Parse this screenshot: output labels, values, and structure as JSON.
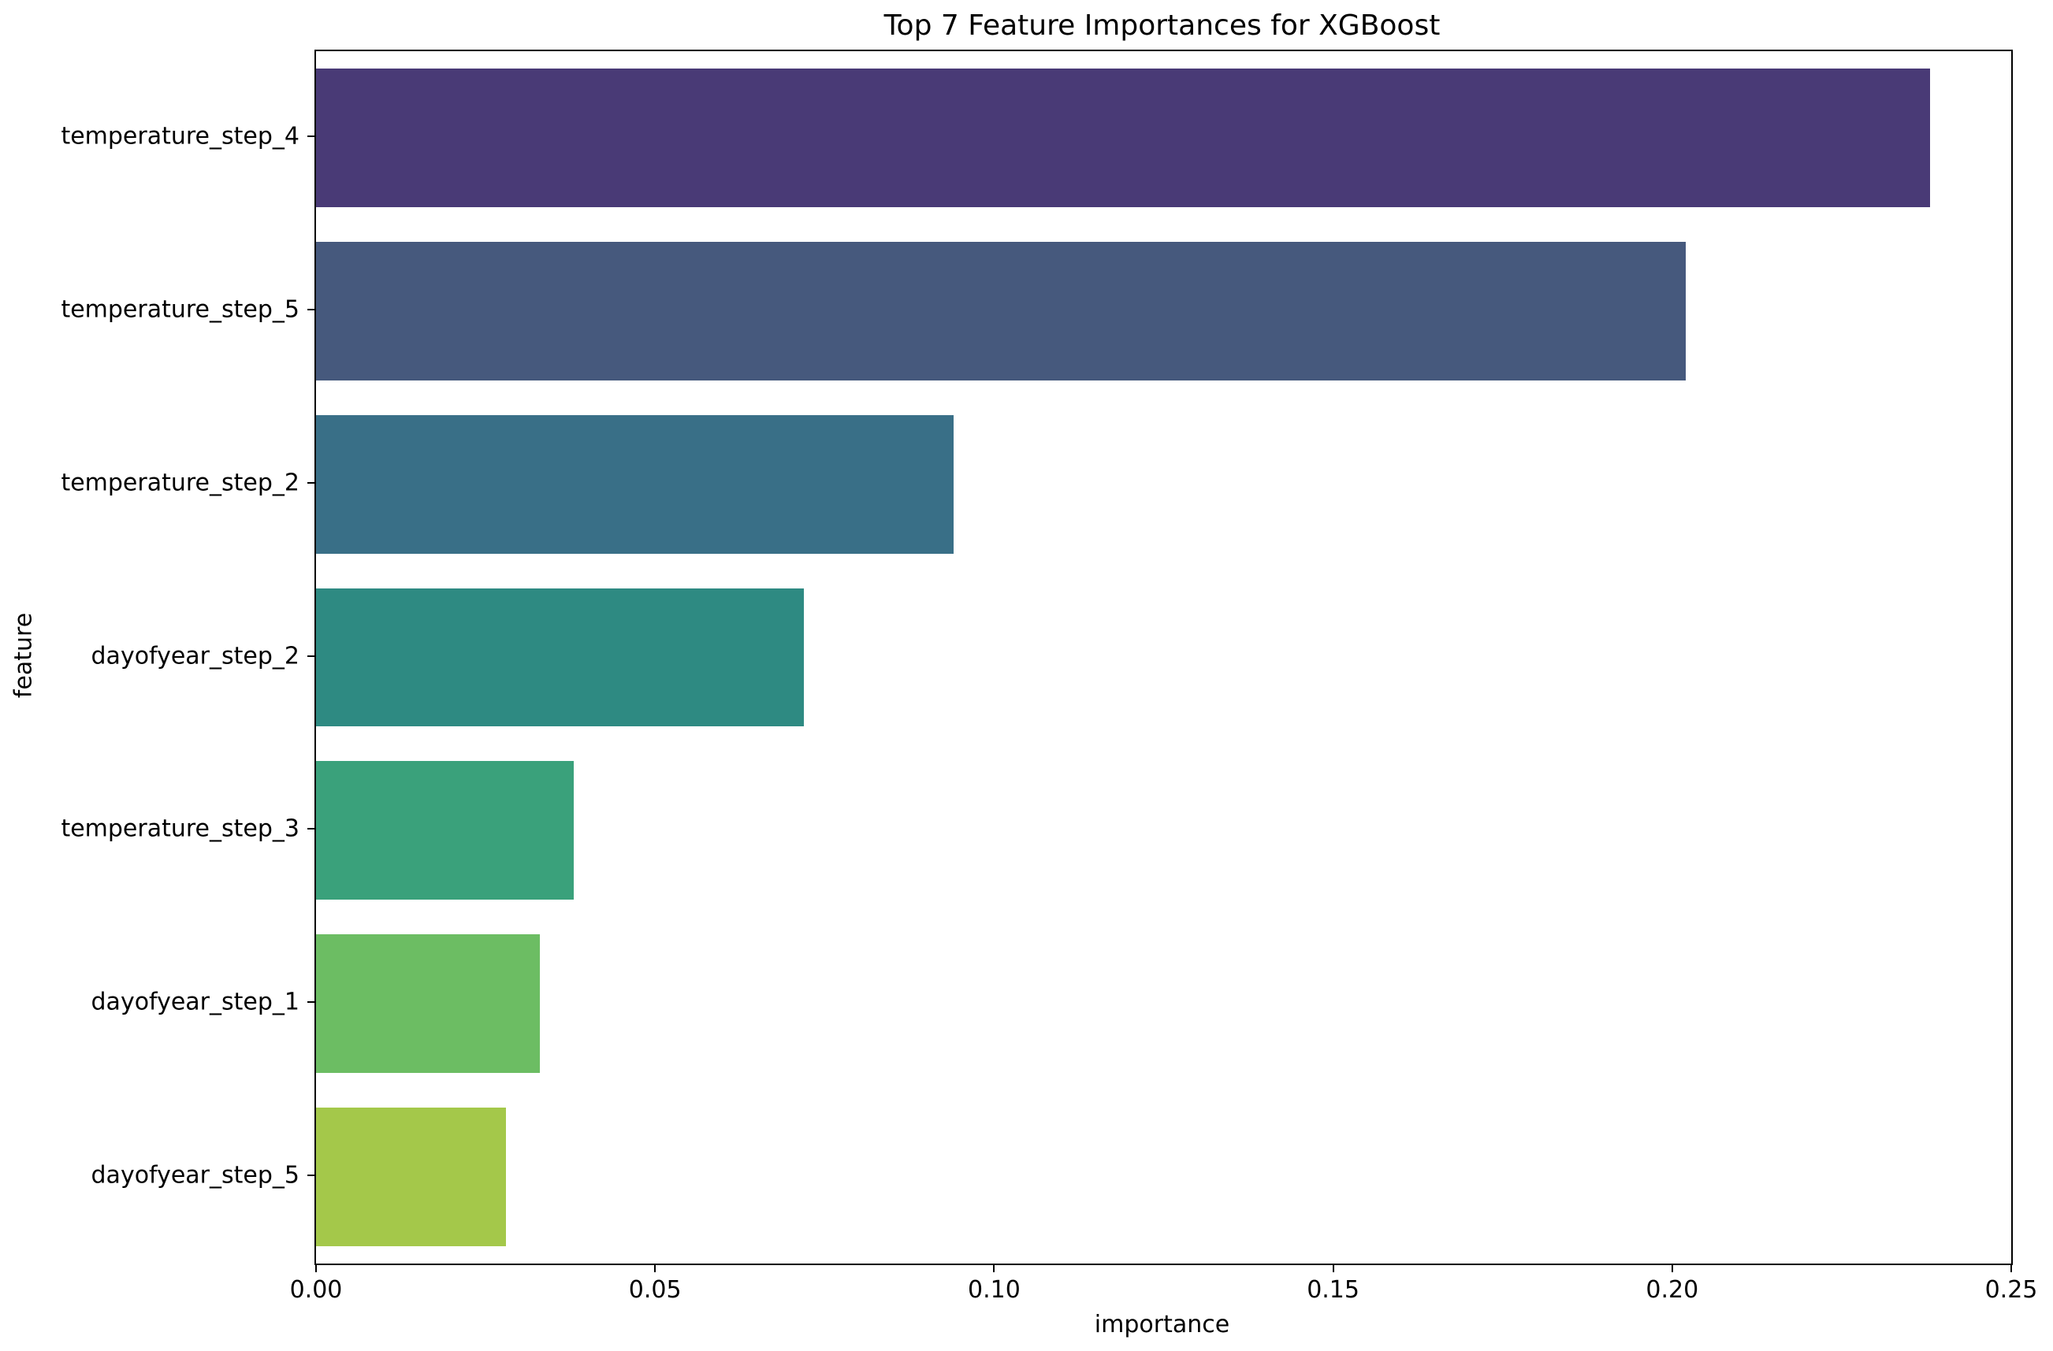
{
  "chart_data": {
    "type": "bar",
    "orientation": "horizontal",
    "title": "Top 7 Feature Importances for XGBoost",
    "xlabel": "importance",
    "ylabel": "feature",
    "categories": [
      "temperature_step_4",
      "temperature_step_5",
      "temperature_step_2",
      "dayofyear_step_2",
      "temperature_step_3",
      "dayofyear_step_1",
      "dayofyear_step_5"
    ],
    "values": [
      0.238,
      0.202,
      0.094,
      0.072,
      0.038,
      0.033,
      0.028
    ],
    "bar_colors": [
      "#493A76",
      "#46597D",
      "#396F87",
      "#2E8A82",
      "#3AA17B",
      "#6CBD63",
      "#A4C84A"
    ],
    "xlim": [
      0,
      0.25
    ],
    "xticks": [
      0,
      0.05,
      0.1,
      0.15,
      0.2,
      0.25
    ],
    "xtick_labels": [
      "0.00",
      "0.05",
      "0.10",
      "0.15",
      "0.20",
      "0.25"
    ],
    "grid": false,
    "legend": null,
    "colors": {
      "spine": "#000000",
      "text": "#000000",
      "background": "#ffffff"
    }
  }
}
